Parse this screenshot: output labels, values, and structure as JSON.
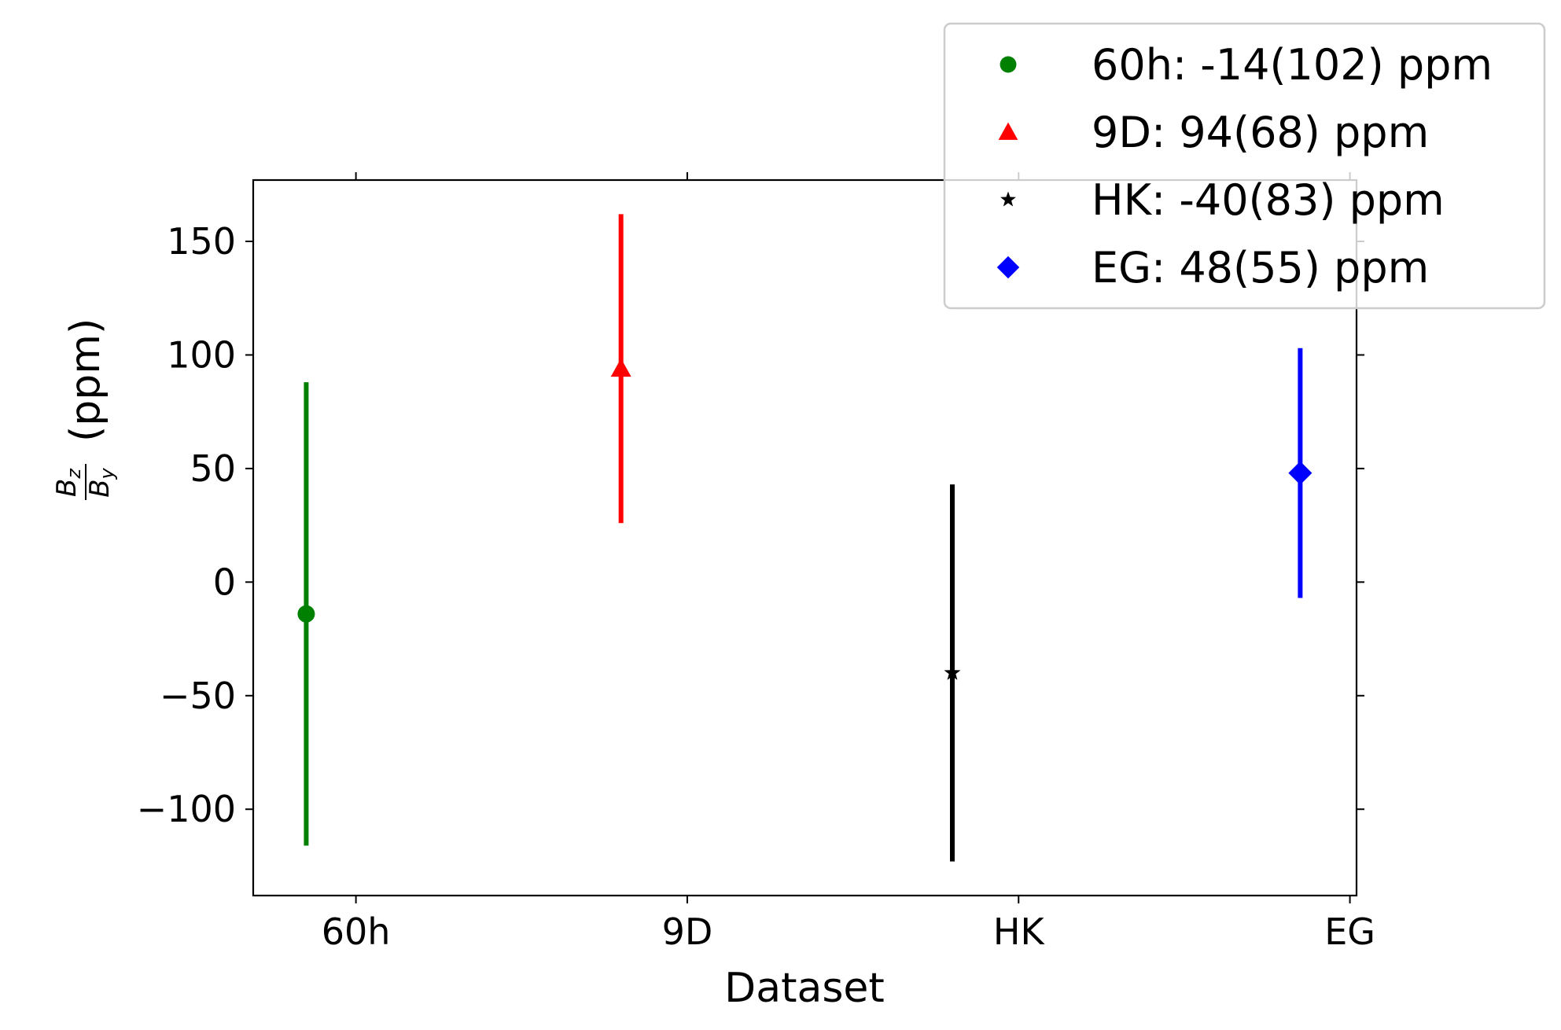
{
  "chart_data": {
    "type": "scatter",
    "xlabel": "Dataset",
    "ylabel": {
      "numerator": "B",
      "numerator_sub": "z",
      "denominator": "B",
      "denominator_sub": "y",
      "unit": "(ppm)"
    },
    "categories": [
      "60h",
      "9D",
      "HK",
      "EG"
    ],
    "xlim": [
      -0.31,
      3.02
    ],
    "ylim": [
      -138,
      177
    ],
    "yticks": [
      -100,
      -50,
      0,
      50,
      100,
      150
    ],
    "ytick_labels": [
      "−100",
      "−50",
      "0",
      "50",
      "100",
      "150"
    ],
    "grid": false,
    "legend_position": "upper right",
    "series": [
      {
        "name": "60h: -14(102) ppm",
        "x": -0.15,
        "y": -14,
        "error": 102,
        "color": "#008000",
        "marker": "circle"
      },
      {
        "name": "9D: 94(68) ppm",
        "x": 0.8,
        "y": 94,
        "error": 68,
        "color": "#ff0000",
        "marker": "triangle"
      },
      {
        "name": "HK: -40(83) ppm",
        "x": 1.8,
        "y": -40,
        "error": 83,
        "color": "#000000",
        "marker": "star"
      },
      {
        "name": "EG: 48(55) ppm",
        "x": 2.85,
        "y": 48,
        "error": 55,
        "color": "#0000ff",
        "marker": "diamond"
      }
    ]
  }
}
